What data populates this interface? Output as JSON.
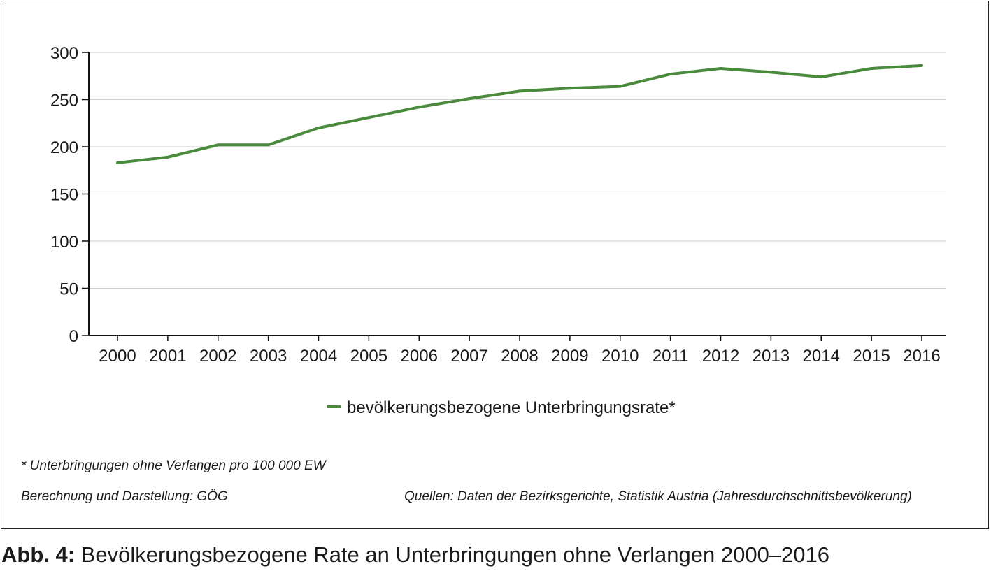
{
  "chart_data": {
    "type": "line",
    "x": [
      "2000",
      "2001",
      "2002",
      "2003",
      "2004",
      "2005",
      "2006",
      "2007",
      "2008",
      "2009",
      "2010",
      "2011",
      "2012",
      "2013",
      "2014",
      "2015",
      "2016"
    ],
    "series": [
      {
        "name": "bevölkerungsbezogene Unterbringungsrate*",
        "color": "#4a8a3c",
        "values": [
          183,
          189,
          202,
          202,
          220,
          231,
          242,
          251,
          259,
          262,
          264,
          277,
          283,
          279,
          274,
          283,
          286
        ]
      }
    ],
    "ylim": [
      0,
      300
    ],
    "yticks": [
      0,
      50,
      100,
      150,
      200,
      250,
      300
    ],
    "grid": true,
    "legend_position": "bottom-center",
    "title": "",
    "xlabel": "",
    "ylabel": ""
  },
  "notes": {
    "footnote": "* Unterbringungen ohne Verlangen pro 100 000 EW",
    "credit": "Berechnung und Darstellung: GÖG",
    "sources": "Quellen: Daten der Bezirksgerichte, Statistik Austria (Jahresdurchschnittsbevölkerung)"
  },
  "caption": {
    "label": "Abb. 4:",
    "text": " Bevölkerungsbezogene Rate an Unterbringungen ohne Verlangen 2000–2016"
  }
}
